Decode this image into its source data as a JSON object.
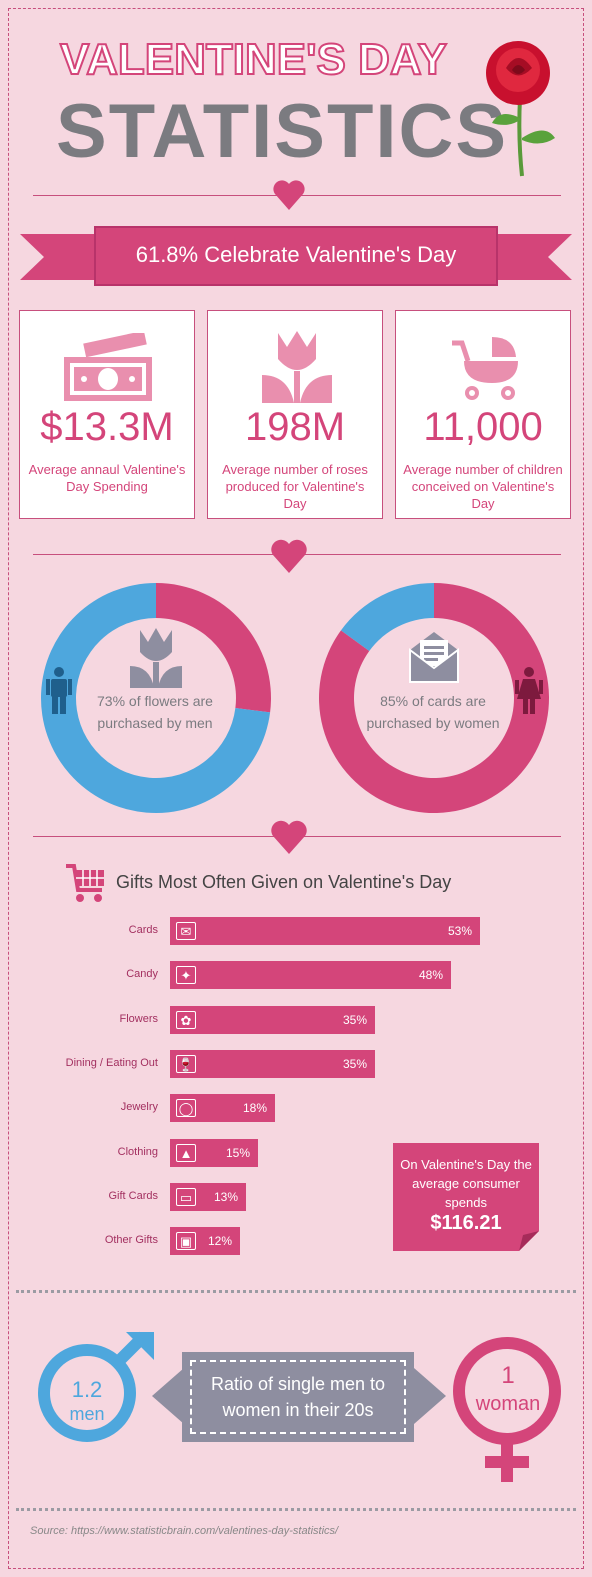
{
  "header": {
    "title_line1": "VALENTINE'S DAY",
    "title_line2": "STATISTICS"
  },
  "banner": {
    "text": "61.8% Celebrate Valentine's Day"
  },
  "stats": [
    {
      "value": "$13.3M",
      "desc": "Average annaul Valentine's Day Spending",
      "icon": "money-icon"
    },
    {
      "value": "198M",
      "desc": "Average number of roses produced for Valentine's Day",
      "icon": "tulip-icon"
    },
    {
      "value": "11,000",
      "desc": "Average number of children conceived on Valentine's Day",
      "icon": "stroller-icon"
    }
  ],
  "colors": {
    "pink": "#d4457a",
    "blue": "#4ea7dd",
    "gray": "#7b7b80",
    "bg": "#f6d7e0"
  },
  "chart_data": [
    {
      "type": "pie",
      "labels": [
        "men",
        "women"
      ],
      "values": [
        73,
        27
      ],
      "colors": [
        "#4ea7dd",
        "#d4457a"
      ],
      "center_text": "73% of flowers are purchased by men"
    },
    {
      "type": "pie",
      "labels": [
        "women",
        "men"
      ],
      "values": [
        85,
        15
      ],
      "colors": [
        "#d4457a",
        "#4ea7dd"
      ],
      "center_text": "85% of cards are purchased by women"
    },
    {
      "type": "bar",
      "title": "Gifts Most Often Given on Valentine's Day",
      "categories": [
        "Cards",
        "Candy",
        "Flowers",
        "Dining / Eating Out",
        "Jewelry",
        "Clothing",
        "Gift Cards",
        "Other Gifts"
      ],
      "values": [
        53,
        48,
        35,
        35,
        18,
        15,
        13,
        12
      ],
      "value_labels": [
        "53%",
        "48%",
        "35%",
        "35%",
        "18%",
        "15%",
        "13%",
        "12%"
      ],
      "icons": [
        "card-icon",
        "candy-icon",
        "flower-icon",
        "wine-icon",
        "ring-icon",
        "dress-icon",
        "giftcard-icon",
        "gift-icon"
      ]
    }
  ],
  "spend_note": {
    "text": "On Valentine's Day the average consumer spends",
    "amount": "$116.21"
  },
  "ratio": {
    "men_value": "1.2",
    "men_label": "men",
    "text": "Ratio of single men to women in their 20s",
    "women_value": "1",
    "women_label": "woman"
  },
  "source": "Source: https://www.statisticbrain.com/valentines-day-statistics/"
}
